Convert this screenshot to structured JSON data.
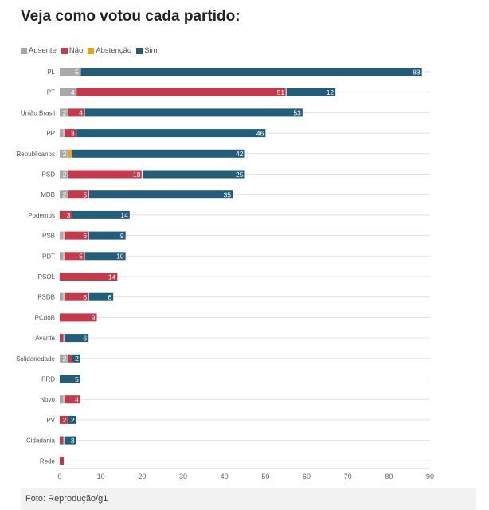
{
  "colors": {
    "Ausente": "#a8a8a8",
    "Não": "#c23a4b",
    "Abstenção": "#e8a417",
    "Sim": "#235d7a"
  },
  "footer": {
    "source": "Foto: Reprodução/g1"
  },
  "chart_data": {
    "type": "bar",
    "orientation": "horizontal",
    "stacked": true,
    "title": "Veja como votou cada partido:",
    "xlabel": "",
    "ylabel": "",
    "xlim": [
      0,
      90
    ],
    "xticks": [
      "0",
      "10",
      "20",
      "30",
      "40",
      "50",
      "60",
      "70",
      "80",
      "90"
    ],
    "grid": true,
    "legend_position": "top-left",
    "categories": [
      "PL",
      "PT",
      "União Brasil",
      "PP",
      "Republicanos",
      "PSD",
      "MDB",
      "Podemos",
      "PSB",
      "PDT",
      "PSOL",
      "PSDB",
      "PCdoB",
      "Avante",
      "Solidariedade",
      "PRD",
      "Novo",
      "PV",
      "Cidadania",
      "Rede"
    ],
    "series": [
      {
        "name": "Ausente",
        "values": [
          5,
          4,
          2,
          1,
          2,
          2,
          2,
          0,
          1,
          1,
          0,
          1,
          0,
          0,
          2,
          0,
          1,
          0,
          0,
          0
        ]
      },
      {
        "name": "Não",
        "values": [
          0,
          51,
          4,
          3,
          0,
          18,
          5,
          3,
          6,
          5,
          14,
          6,
          9,
          1,
          1,
          0,
          4,
          2,
          1,
          1
        ]
      },
      {
        "name": "Abstenção",
        "values": [
          0,
          0,
          0,
          0,
          1,
          0,
          0,
          0,
          0,
          0,
          0,
          0,
          0,
          0,
          0,
          0,
          0,
          0,
          0,
          0
        ]
      },
      {
        "name": "Sim",
        "values": [
          83,
          12,
          53,
          46,
          42,
          25,
          35,
          14,
          9,
          10,
          0,
          6,
          0,
          6,
          2,
          5,
          0,
          2,
          3,
          0
        ]
      }
    ],
    "data_labels": [
      [
        "5",
        "",
        "",
        "83"
      ],
      [
        "4",
        "51",
        "",
        "12"
      ],
      [
        "2",
        "4",
        "",
        "53"
      ],
      [
        "",
        "3",
        "",
        "46"
      ],
      [
        "2",
        "",
        "",
        "42"
      ],
      [
        "2",
        "18",
        "",
        "25"
      ],
      [
        "2",
        "5",
        "",
        "35"
      ],
      [
        "",
        "3",
        "",
        "14"
      ],
      [
        "",
        "6",
        "",
        "9"
      ],
      [
        "",
        "5",
        "",
        "10"
      ],
      [
        "",
        "14",
        "",
        ""
      ],
      [
        "",
        "6",
        "",
        "6"
      ],
      [
        "",
        "9",
        "",
        ""
      ],
      [
        "",
        "",
        "",
        "6"
      ],
      [
        "2",
        "",
        "",
        "2"
      ],
      [
        "",
        "",
        "",
        "5"
      ],
      [
        "",
        "4",
        "",
        ""
      ],
      [
        "",
        "2",
        "",
        "2"
      ],
      [
        "",
        "",
        "",
        "3"
      ],
      [
        "",
        "",
        "",
        ""
      ]
    ]
  }
}
